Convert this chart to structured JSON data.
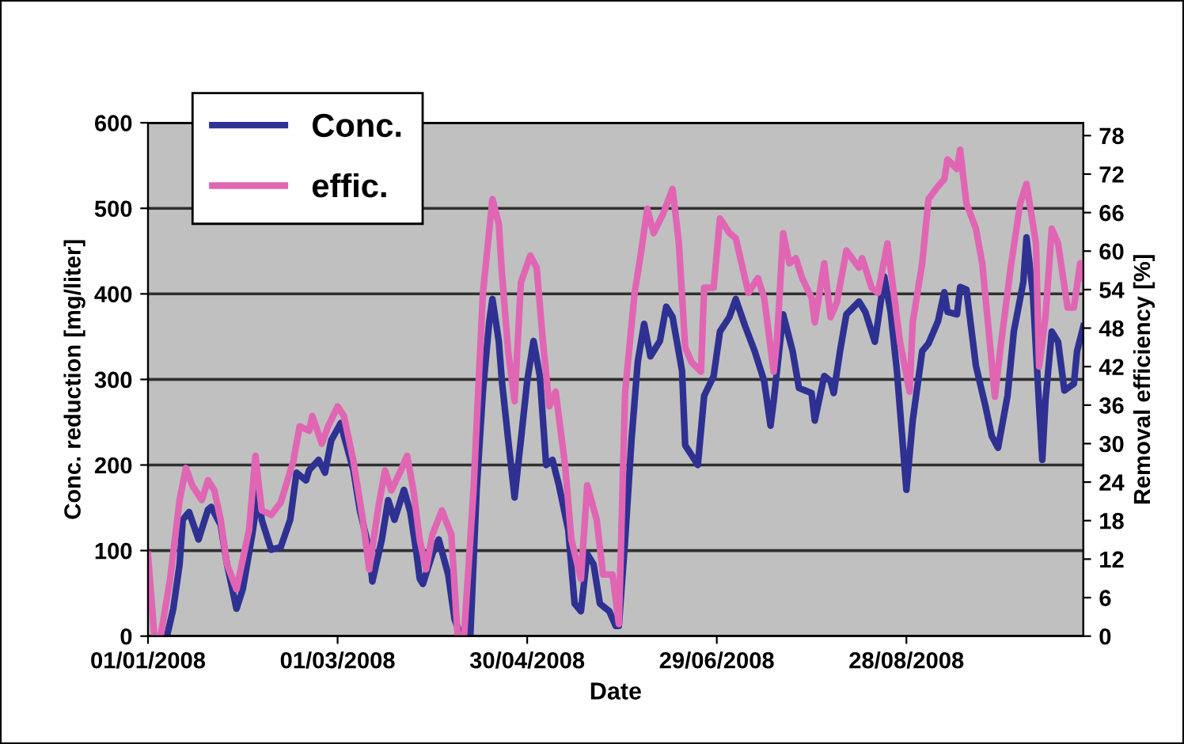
{
  "chart_data": {
    "type": "line",
    "xlabel": "Date",
    "ylabel": "Conc. reduction [mg/liter]",
    "y2label": "Removal efficiency [%]",
    "xlim": [
      "2008-01-01",
      "2008-10-23"
    ],
    "xticks": [
      {
        "value": "2008-01-01",
        "label": "01/01/2008"
      },
      {
        "value": "2008-03-01",
        "label": "01/03/2008"
      },
      {
        "value": "2008-04-30",
        "label": "30/04/2008"
      },
      {
        "value": "2008-06-29",
        "label": "29/06/2008"
      },
      {
        "value": "2008-08-28",
        "label": "28/08/2008"
      }
    ],
    "ylim": [
      0,
      600
    ],
    "yticks": [
      0,
      100,
      200,
      300,
      400,
      500,
      600
    ],
    "y2lim": [
      0,
      80
    ],
    "y2ticks": [
      0,
      6,
      12,
      18,
      24,
      30,
      36,
      42,
      48,
      54,
      60,
      66,
      72,
      78
    ],
    "grid": "y",
    "legend": "top left",
    "marker": "none",
    "line_style": "solid",
    "series": [
      {
        "name": "Conc.",
        "color": "#2e3192",
        "x": [
          "2008-01-07",
          "2008-01-09",
          "2008-01-11",
          "2008-01-12",
          "2008-01-14",
          "2008-01-17",
          "2008-01-20",
          "2008-01-21",
          "2008-01-24",
          "2008-01-26",
          "2008-01-29",
          "2008-01-31",
          "2008-02-03",
          "2008-02-05",
          "2008-02-06",
          "2008-02-09",
          "2008-02-12",
          "2008-02-15",
          "2008-02-17",
          "2008-02-20",
          "2008-02-21",
          "2008-02-24",
          "2008-02-26",
          "2008-02-28",
          "2008-03-02",
          "2008-03-03",
          "2008-03-06",
          "2008-03-08",
          "2008-03-11",
          "2008-03-12",
          "2008-03-15",
          "2008-03-17",
          "2008-03-19",
          "2008-03-22",
          "2008-03-24",
          "2008-03-26",
          "2008-03-27",
          "2008-03-28",
          "2008-03-31",
          "2008-04-02",
          "2008-04-05",
          "2008-04-07",
          "2008-04-09",
          "2008-04-12",
          "2008-04-14",
          "2008-04-16",
          "2008-04-18",
          "2008-04-19",
          "2008-04-21",
          "2008-04-22",
          "2008-04-24",
          "2008-04-26",
          "2008-04-28",
          "2008-04-30",
          "2008-05-02",
          "2008-05-04",
          "2008-05-06",
          "2008-05-08",
          "2008-05-10",
          "2008-05-13",
          "2008-05-15",
          "2008-05-17",
          "2008-05-19",
          "2008-05-21",
          "2008-05-23",
          "2008-05-26",
          "2008-05-28",
          "2008-05-29",
          "2008-05-31",
          "2008-06-02",
          "2008-06-04",
          "2008-06-06",
          "2008-06-08",
          "2008-06-11",
          "2008-06-13",
          "2008-06-15",
          "2008-06-18",
          "2008-06-19",
          "2008-06-22",
          "2008-06-23",
          "2008-06-25",
          "2008-06-28",
          "2008-06-30",
          "2008-07-03",
          "2008-07-05",
          "2008-07-08",
          "2008-07-11",
          "2008-07-14",
          "2008-07-16",
          "2008-07-17",
          "2008-07-20",
          "2008-07-23",
          "2008-07-25",
          "2008-07-29",
          "2008-07-30",
          "2008-08-02",
          "2008-08-04",
          "2008-08-05",
          "2008-08-07",
          "2008-08-09",
          "2008-08-13",
          "2008-08-15",
          "2008-08-18",
          "2008-08-19",
          "2008-08-21",
          "2008-08-23",
          "2008-08-25",
          "2008-08-28",
          "2008-08-30",
          "2008-09-02",
          "2008-09-04",
          "2008-09-07",
          "2008-09-09",
          "2008-09-10",
          "2008-09-13",
          "2008-09-14",
          "2008-09-16",
          "2008-09-19",
          "2008-09-22",
          "2008-09-24",
          "2008-09-26",
          "2008-09-29",
          "2008-10-01",
          "2008-10-04",
          "2008-10-05",
          "2008-10-07",
          "2008-10-09",
          "2008-10-10",
          "2008-10-11",
          "2008-10-13",
          "2008-10-15",
          "2008-10-17",
          "2008-10-20",
          "2008-10-21",
          "2008-10-23"
        ],
        "values": [
          0,
          32,
          84,
          136,
          145,
          113,
          148,
          151,
          130,
          84,
          32,
          55,
          119,
          171,
          136,
          101,
          104,
          136,
          191,
          182,
          194,
          206,
          191,
          229,
          249,
          234,
          194,
          148,
          101,
          64,
          113,
          159,
          136,
          171,
          145,
          96,
          67,
          61,
          96,
          113,
          72,
          20,
          0,
          0,
          171,
          287,
          368,
          394,
          345,
          298,
          229,
          162,
          229,
          298,
          345,
          304,
          200,
          206,
          177,
          124,
          38,
          29,
          96,
          84,
          38,
          29,
          12,
          12,
          113,
          229,
          321,
          365,
          327,
          345,
          385,
          373,
          310,
          223,
          206,
          200,
          281,
          304,
          356,
          373,
          394,
          362,
          333,
          298,
          246,
          275,
          376,
          333,
          290,
          284,
          252,
          304,
          298,
          284,
          333,
          376,
          391,
          379,
          344,
          368,
          420,
          379,
          310,
          171,
          252,
          333,
          342,
          368,
          402,
          379,
          376,
          408,
          405,
          316,
          269,
          234,
          220,
          281,
          356,
          414,
          466,
          402,
          269,
          206,
          275,
          356,
          344,
          287,
          295,
          333,
          362
        ]
      },
      {
        "name": "effic.",
        "color": "#e066b4",
        "axis": "y2",
        "x": [
          "2008-01-01",
          "2008-01-03",
          "2008-01-05",
          "2008-01-08",
          "2008-01-11",
          "2008-01-13",
          "2008-01-15",
          "2008-01-18",
          "2008-01-20",
          "2008-01-22",
          "2008-01-24",
          "2008-01-26",
          "2008-01-29",
          "2008-02-02",
          "2008-02-04",
          "2008-02-06",
          "2008-02-09",
          "2008-02-12",
          "2008-02-16",
          "2008-02-18",
          "2008-02-21",
          "2008-02-22",
          "2008-02-25",
          "2008-02-27",
          "2008-03-01",
          "2008-03-03",
          "2008-03-06",
          "2008-03-09",
          "2008-03-11",
          "2008-03-14",
          "2008-03-16",
          "2008-03-18",
          "2008-03-21",
          "2008-03-23",
          "2008-03-25",
          "2008-03-27",
          "2008-03-29",
          "2008-03-31",
          "2008-04-03",
          "2008-04-06",
          "2008-04-08",
          "2008-04-10",
          "2008-04-13",
          "2008-04-16",
          "2008-04-19",
          "2008-04-21",
          "2008-04-22",
          "2008-04-24",
          "2008-04-26",
          "2008-04-28",
          "2008-05-01",
          "2008-05-03",
          "2008-05-05",
          "2008-05-07",
          "2008-05-09",
          "2008-05-12",
          "2008-05-14",
          "2008-05-17",
          "2008-05-19",
          "2008-05-22",
          "2008-05-24",
          "2008-05-27",
          "2008-05-29",
          "2008-05-31",
          "2008-06-03",
          "2008-06-05",
          "2008-06-07",
          "2008-06-09",
          "2008-06-12",
          "2008-06-15",
          "2008-06-17",
          "2008-06-19",
          "2008-06-21",
          "2008-06-24",
          "2008-06-25",
          "2008-06-28",
          "2008-06-30",
          "2008-07-03",
          "2008-07-05",
          "2008-07-09",
          "2008-07-12",
          "2008-07-14",
          "2008-07-17",
          "2008-07-18",
          "2008-07-20",
          "2008-07-22",
          "2008-07-24",
          "2008-07-26",
          "2008-07-29",
          "2008-07-30",
          "2008-08-02",
          "2008-08-04",
          "2008-08-06",
          "2008-08-09",
          "2008-08-13",
          "2008-08-14",
          "2008-08-17",
          "2008-08-19",
          "2008-08-22",
          "2008-08-24",
          "2008-08-26",
          "2008-08-29",
          "2008-08-30",
          "2008-09-02",
          "2008-09-04",
          "2008-09-07",
          "2008-09-09",
          "2008-09-10",
          "2008-09-13",
          "2008-09-14",
          "2008-09-16",
          "2008-09-19",
          "2008-09-21",
          "2008-09-24",
          "2008-09-25",
          "2008-09-27",
          "2008-09-30",
          "2008-10-03",
          "2008-10-05",
          "2008-10-08",
          "2008-10-09",
          "2008-10-11",
          "2008-10-13",
          "2008-10-15",
          "2008-10-18",
          "2008-10-20",
          "2008-10-22",
          "2008-10-23"
        ],
        "values": [
          12.7,
          0,
          0,
          8.9,
          21.2,
          26.2,
          23.5,
          21.2,
          24.3,
          22.7,
          18.1,
          11.2,
          7.3,
          16.6,
          28.1,
          19.6,
          18.9,
          20.8,
          27.3,
          32.7,
          32,
          34.3,
          30,
          32.7,
          35.8,
          34.3,
          27.3,
          18.1,
          10.4,
          20.4,
          25.8,
          22.7,
          25.8,
          28.1,
          22.7,
          15,
          10.4,
          15.8,
          19.6,
          15.8,
          0,
          0,
          22.7,
          53.5,
          68.1,
          64.3,
          56.6,
          44.3,
          36.6,
          55.1,
          59.3,
          57.4,
          45.8,
          35.8,
          38.1,
          26.6,
          15,
          8.9,
          23.5,
          18.1,
          9.6,
          9.6,
          1.9,
          38.1,
          53.5,
          59.7,
          66.6,
          62.8,
          65.8,
          69.7,
          61.2,
          45,
          42.7,
          41.2,
          54.3,
          54.3,
          65.1,
          62.8,
          62,
          53.5,
          55.8,
          52.7,
          41.2,
          45.8,
          62.8,
          58.1,
          58.9,
          55.8,
          52.7,
          48.9,
          58.1,
          49.7,
          52,
          60.1,
          57.4,
          58.9,
          54.3,
          53.5,
          61.2,
          53.5,
          45.8,
          38.1,
          48.9,
          58.1,
          68.1,
          70.1,
          71.2,
          74.3,
          72.8,
          75.8,
          67.4,
          63.5,
          58.1,
          42.7,
          37.3,
          45.8,
          57.4,
          67.4,
          70.5,
          61.2,
          42,
          49.7,
          63.5,
          61.2,
          51.2,
          51.2,
          58.1,
          55.8
        ]
      }
    ]
  }
}
